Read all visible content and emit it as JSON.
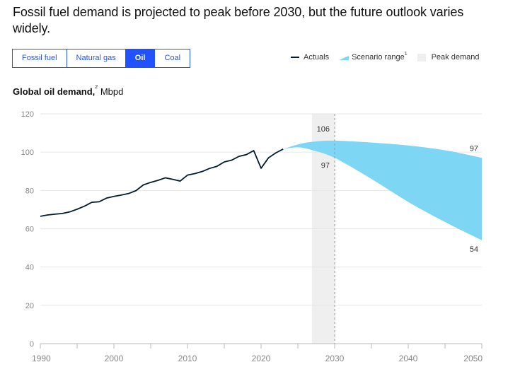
{
  "title": "Fossil fuel demand is projected to peak before 2030, but the future outlook varies widely.",
  "tabs": [
    {
      "label": "Fossil fuel",
      "active": false
    },
    {
      "label": "Natural gas",
      "active": false
    },
    {
      "label": "Oil",
      "active": true
    },
    {
      "label": "Coal",
      "active": false
    }
  ],
  "legend": {
    "actuals": "Actuals",
    "scenario": "Scenario range",
    "scenario_sup": "1",
    "peak": "Peak demand"
  },
  "subtitle": {
    "bold": "Global oil demand,",
    "sup": "2",
    "unit": " Mbpd"
  },
  "colors": {
    "accent": "#2251ff",
    "actuals": "#051c2c",
    "scenario": "#7ed6f5",
    "peak": "#efefef",
    "grid": "#e6e6e6"
  },
  "chart_data": {
    "type": "line",
    "title": "Global oil demand",
    "ylabel": "Mbpd",
    "xlabel": "",
    "xlim": [
      1990,
      2050
    ],
    "ylim": [
      0,
      120
    ],
    "yticks": [
      0,
      20,
      40,
      60,
      80,
      100,
      120
    ],
    "xticks": [
      1990,
      2000,
      2010,
      2020,
      2030,
      2040,
      2050
    ],
    "xminor": [
      1995,
      2005,
      2015,
      2025,
      2035,
      2045
    ],
    "grid": true,
    "legend_position": "top-right",
    "series": [
      {
        "name": "Actuals",
        "x": [
          1990,
          1991,
          1992,
          1993,
          1994,
          1995,
          1996,
          1997,
          1998,
          1999,
          2000,
          2001,
          2002,
          2003,
          2004,
          2005,
          2006,
          2007,
          2008,
          2009,
          2010,
          2011,
          2012,
          2013,
          2014,
          2015,
          2016,
          2017,
          2018,
          2019,
          2020,
          2021,
          2022,
          2023
        ],
        "values": [
          66.5,
          67.2,
          67.6,
          68.0,
          68.8,
          70.2,
          71.8,
          73.8,
          74.1,
          76.0,
          76.9,
          77.6,
          78.4,
          79.9,
          82.9,
          84.2,
          85.3,
          86.6,
          85.8,
          84.9,
          88.0,
          88.8,
          89.9,
          91.5,
          92.6,
          94.9,
          95.8,
          97.8,
          98.7,
          100.8,
          91.6,
          97.0,
          99.6,
          101.6
        ]
      }
    ],
    "scenario_range": {
      "name": "Scenario range",
      "x": [
        2023,
        2025,
        2027,
        2030,
        2035,
        2040,
        2045,
        2050
      ],
      "upper": [
        101.6,
        104.0,
        105.4,
        106.0,
        105.0,
        103.5,
        101.0,
        97.0
      ],
      "lower": [
        101.6,
        102.5,
        101.0,
        97.0,
        86.0,
        74.0,
        63.5,
        54.0
      ]
    },
    "peak_demand_band": {
      "name": "Peak demand",
      "from": 2027,
      "to": 2030
    },
    "reference_line": {
      "x": 2030,
      "style": "dashed"
    },
    "annotations": [
      {
        "text": "106",
        "x": 2030,
        "y": 106
      },
      {
        "text": "97",
        "x": 2030,
        "y": 97
      },
      {
        "text": "97",
        "x": 2050,
        "y": 97
      },
      {
        "text": "54",
        "x": 2050,
        "y": 54
      }
    ]
  }
}
